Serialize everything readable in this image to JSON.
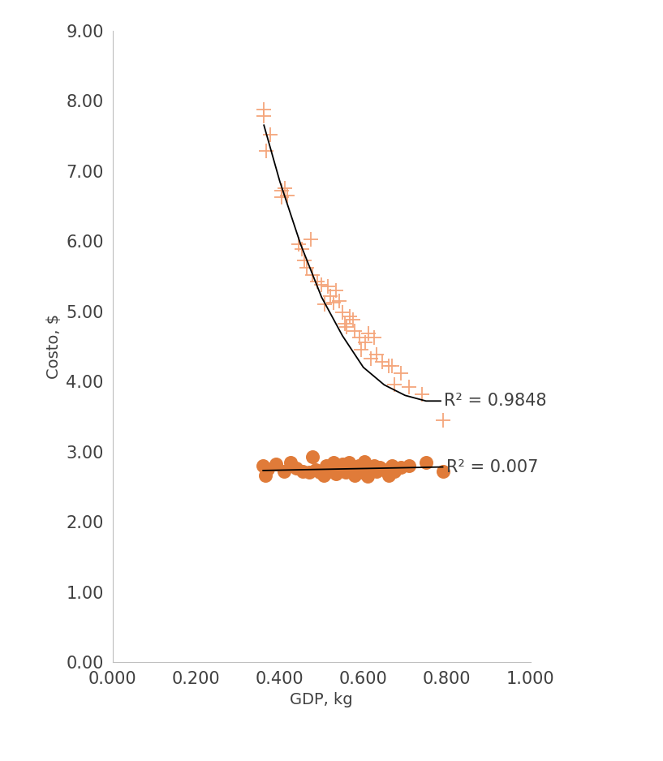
{
  "chart_data": {
    "type": "scatter",
    "x_label": "GDP, kg",
    "y_label": "Costo, $",
    "xlim": [
      0,
      1
    ],
    "xticks": [
      {
        "value": 0,
        "label": "0.000"
      },
      {
        "value": 0.2,
        "label": "0.200"
      },
      {
        "value": 0.4,
        "label": "0.400"
      },
      {
        "value": 0.6,
        "label": "0.600"
      },
      {
        "value": 0.8,
        "label": "0.800"
      },
      {
        "value": 1,
        "label": "1.000"
      }
    ],
    "ylim": [
      0,
      9
    ],
    "yticks": [
      {
        "value": 0,
        "label": "0.00"
      },
      {
        "value": 1,
        "label": "1.00"
      },
      {
        "value": 2,
        "label": "2.00"
      },
      {
        "value": 3,
        "label": "3.00"
      },
      {
        "value": 4,
        "label": "4.00"
      },
      {
        "value": 5,
        "label": "5.00"
      },
      {
        "value": 6,
        "label": "6.00"
      },
      {
        "value": 7,
        "label": "7.00"
      },
      {
        "value": 8,
        "label": "8.00"
      },
      {
        "value": 9,
        "label": "9.00"
      }
    ],
    "grid": false,
    "series": [
      {
        "type": "scatter",
        "marker": "plus",
        "color": "#f4a67c",
        "x": [
          0.362,
          0.362,
          0.368,
          0.378,
          0.405,
          0.405,
          0.412,
          0.418,
          0.445,
          0.452,
          0.458,
          0.465,
          0.475,
          0.478,
          0.49,
          0.5,
          0.508,
          0.515,
          0.52,
          0.528,
          0.535,
          0.542,
          0.55,
          0.555,
          0.56,
          0.568,
          0.575,
          0.58,
          0.59,
          0.595,
          0.605,
          0.612,
          0.618,
          0.625,
          0.632,
          0.645,
          0.66,
          0.668,
          0.675,
          0.69,
          0.71,
          0.74,
          0.79
        ],
        "values": [
          7.87,
          7.78,
          7.28,
          7.52,
          6.72,
          6.62,
          6.75,
          6.65,
          5.95,
          5.88,
          5.72,
          5.62,
          6.02,
          5.52,
          5.42,
          5.38,
          5.1,
          5.35,
          5.22,
          5.12,
          5.3,
          5.15,
          4.98,
          4.82,
          4.78,
          4.92,
          4.88,
          4.72,
          4.62,
          4.45,
          4.55,
          4.68,
          4.32,
          4.62,
          4.38,
          4.28,
          4.22,
          4.22,
          3.95,
          4.12,
          3.92,
          3.82,
          3.45
        ]
      },
      {
        "type": "line",
        "line_style": "solid",
        "color": "#000000",
        "x": [
          0.362,
          0.4,
          0.45,
          0.5,
          0.55,
          0.6,
          0.65,
          0.7,
          0.75,
          0.785
        ],
        "values": [
          7.65,
          6.85,
          5.95,
          5.2,
          4.65,
          4.2,
          3.95,
          3.8,
          3.72,
          3.72
        ]
      },
      {
        "type": "scatter",
        "marker": "circle",
        "color": "#e07b39",
        "x": [
          0.36,
          0.365,
          0.372,
          0.39,
          0.41,
          0.425,
          0.44,
          0.455,
          0.47,
          0.478,
          0.485,
          0.495,
          0.505,
          0.512,
          0.52,
          0.528,
          0.535,
          0.542,
          0.55,
          0.557,
          0.565,
          0.572,
          0.58,
          0.588,
          0.595,
          0.603,
          0.61,
          0.618,
          0.625,
          0.632,
          0.64,
          0.65,
          0.66,
          0.668,
          0.675,
          0.69,
          0.71,
          0.75,
          0.79
        ],
        "values": [
          2.8,
          2.66,
          2.75,
          2.82,
          2.72,
          2.85,
          2.76,
          2.72,
          2.7,
          2.92,
          2.74,
          2.7,
          2.66,
          2.8,
          2.72,
          2.84,
          2.68,
          2.78,
          2.82,
          2.7,
          2.84,
          2.75,
          2.66,
          2.8,
          2.7,
          2.86,
          2.65,
          2.76,
          2.8,
          2.72,
          2.78,
          2.74,
          2.66,
          2.8,
          2.72,
          2.78,
          2.8,
          2.84,
          2.72
        ]
      },
      {
        "type": "line",
        "line_style": "solid",
        "color": "#000000",
        "x": [
          0.36,
          0.79
        ],
        "values": [
          2.73,
          2.78
        ]
      }
    ],
    "annotations": [
      {
        "text": "R² = 0.9848",
        "x": 0.785,
        "y": 3.72
      },
      {
        "text": "R² = 0.007",
        "x": 0.79,
        "y": 2.78
      }
    ]
  }
}
